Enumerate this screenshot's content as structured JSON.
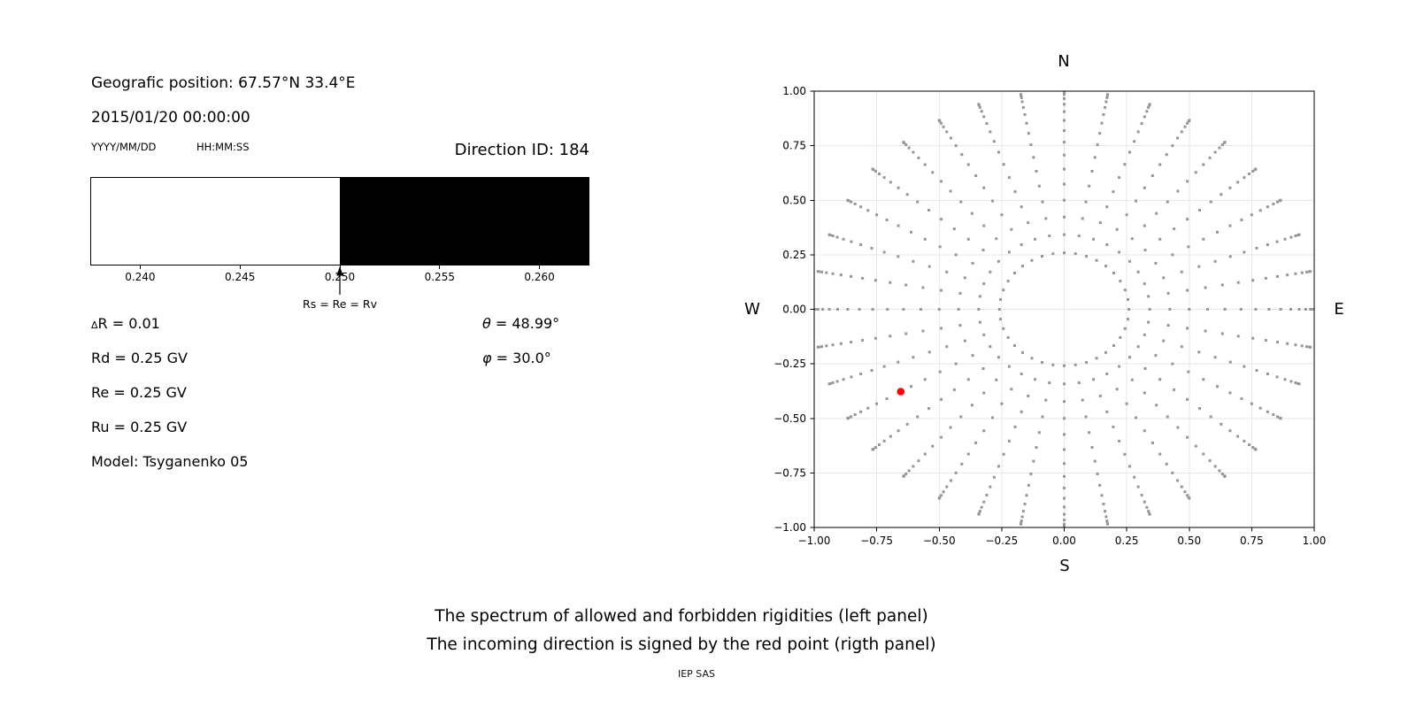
{
  "info_panel": {
    "geo_position": "Geografic position: 67.57°N 33.4°E",
    "datetime": "2015/01/20 00:00:00",
    "date_format_label": "YYYY/MM/DD",
    "time_format_label": "HH:MM:SS",
    "direction_id_title": "Direction ID: 184",
    "params": {
      "delta_symbol": "Δ",
      "delta_rest": "R = 0.01",
      "rd": "Rd = 0.25 GV",
      "re": "Re = 0.25 GV",
      "ru": "Ru = 0.25 GV",
      "model": "Model: Tsyganenko 05",
      "theta_symbol": "θ",
      "theta_rest": " = 48.99°",
      "phi_symbol": "φ",
      "phi_rest": " = 30.0°"
    }
  },
  "caption": {
    "line1": "The spectrum of allowed and forbidden rigidities (left panel)",
    "line2": "The incoming direction is signed by the red point (rigth panel)",
    "credit": "IEP SAS"
  },
  "chart_data": [
    {
      "id": "rigidity-spectrum",
      "type": "bar",
      "xlim": [
        0.2375,
        0.2625
      ],
      "xticks": [
        0.24,
        0.245,
        0.25,
        0.255,
        0.26
      ],
      "xtick_labels": [
        "0.240",
        "0.245",
        "0.250",
        "0.255",
        "0.260"
      ],
      "segments": [
        {
          "name": "allowed-region",
          "from": 0.2375,
          "to": 0.25,
          "color": "#ffffff"
        },
        {
          "name": "forbidden-region",
          "from": 0.25,
          "to": 0.2625,
          "color": "#000000"
        }
      ],
      "annotation": {
        "text": "Rs = Re = Rv",
        "x": 0.25
      }
    },
    {
      "id": "incoming-direction-map",
      "type": "scatter",
      "xlim": [
        -1.0,
        1.0
      ],
      "ylim": [
        -1.0,
        1.0
      ],
      "xticks": [
        -1.0,
        -0.75,
        -0.5,
        -0.25,
        0.0,
        0.25,
        0.5,
        0.75,
        1.0
      ],
      "xtick_labels": [
        "−1.00",
        "−0.75",
        "−0.50",
        "−0.25",
        "0.00",
        "0.25",
        "0.50",
        "0.75",
        "1.00"
      ],
      "yticks": [
        1.0,
        0.75,
        0.5,
        0.25,
        0.0,
        -0.25,
        -0.5,
        -0.75,
        -1.0
      ],
      "ytick_labels": [
        "1.00",
        "0.75",
        "0.50",
        "0.25",
        "0.00",
        "−0.25",
        "−0.50",
        "−0.75",
        "−1.00"
      ],
      "grid": true,
      "grid_color": "#e7e7e7",
      "compass": {
        "top": "N",
        "bottom": "S",
        "left": "W",
        "right": "E"
      },
      "rays": {
        "azimuth_start_deg": 0,
        "azimuth_step_deg": 10,
        "azimuth_count": 36,
        "zenith_min_deg": 15,
        "zenith_max_deg": 90,
        "zenith_step_deg": 5,
        "radius_rule": "sin(zenith)",
        "marker": "square",
        "marker_size_px": 3,
        "color": "#969696"
      },
      "red_point": {
        "x": -0.6536,
        "y": -0.3773,
        "theta_deg": 48.99,
        "phi_deg": 30.0,
        "color": "#ff0000",
        "radius_px": 4.3
      }
    }
  ]
}
